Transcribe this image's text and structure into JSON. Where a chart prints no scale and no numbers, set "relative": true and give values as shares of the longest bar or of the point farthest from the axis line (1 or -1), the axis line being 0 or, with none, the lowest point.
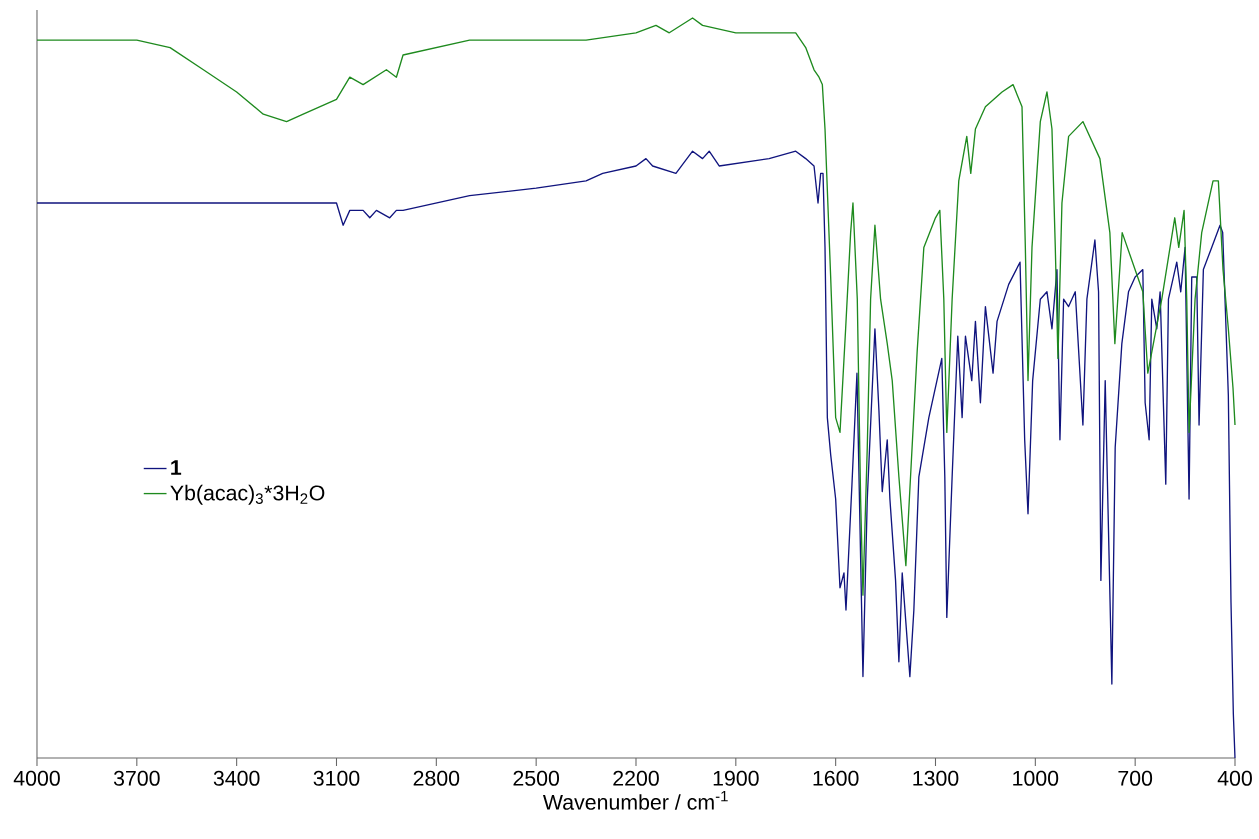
{
  "chart_data": {
    "type": "line",
    "relative": true,
    "xlabel": "Wavenumber / cm$^{-1}$",
    "xlim": [
      4000,
      400
    ],
    "xticks": [
      4000,
      3700,
      3400,
      3100,
      2800,
      2500,
      2200,
      1900,
      1600,
      1300,
      1000,
      700,
      400
    ],
    "legend": "left",
    "grid": false,
    "marker": "none",
    "series": [
      {
        "name": "**1**",
        "color": "#10147e",
        "x": [
          4000,
          3700,
          3400,
          3100,
          3080,
          3060,
          3020,
          3000,
          2980,
          2940,
          2920,
          2900,
          2700,
          2500,
          2350,
          2300,
          2200,
          2170,
          2150,
          2080,
          2030,
          2000,
          1980,
          1950,
          1800,
          1720,
          1690,
          1665,
          1653,
          1645,
          1638,
          1632,
          1625,
          1615,
          1600,
          1587,
          1575,
          1569,
          1551,
          1536,
          1525,
          1518,
          1505,
          1482,
          1470,
          1460,
          1445,
          1437,
          1420,
          1410,
          1400,
          1377,
          1365,
          1350,
          1320,
          1281,
          1272,
          1266,
          1250,
          1233,
          1220,
          1210,
          1191,
          1180,
          1165,
          1150,
          1127,
          1115,
          1080,
          1046,
          1032,
          1022,
          1008,
          985,
          965,
          950,
          935,
          926,
          915,
          900,
          880,
          857,
          845,
          821,
          810,
          803,
          790,
          770,
          760,
          740,
          720,
          700,
          677,
          670,
          658,
          650,
          635,
          625,
          608,
          600,
          575,
          563,
          550,
          538,
          530,
          515,
          508,
          495,
          470,
          445,
          437,
          430,
          420,
          412,
          405,
          400
        ],
        "values": [
          0.75,
          0.75,
          0.75,
          0.75,
          0.72,
          0.74,
          0.74,
          0.73,
          0.74,
          0.73,
          0.74,
          0.74,
          0.76,
          0.77,
          0.78,
          0.79,
          0.8,
          0.81,
          0.8,
          0.79,
          0.82,
          0.81,
          0.82,
          0.8,
          0.81,
          0.82,
          0.81,
          0.8,
          0.75,
          0.79,
          0.79,
          0.69,
          0.46,
          0.41,
          0.35,
          0.23,
          0.25,
          0.2,
          0.37,
          0.52,
          0.27,
          0.11,
          0.35,
          0.58,
          0.47,
          0.36,
          0.43,
          0.35,
          0.24,
          0.13,
          0.25,
          0.11,
          0.2,
          0.38,
          0.46,
          0.54,
          0.38,
          0.19,
          0.38,
          0.57,
          0.46,
          0.57,
          0.51,
          0.59,
          0.48,
          0.61,
          0.52,
          0.59,
          0.64,
          0.67,
          0.43,
          0.33,
          0.51,
          0.62,
          0.63,
          0.58,
          0.66,
          0.43,
          0.62,
          0.61,
          0.63,
          0.45,
          0.62,
          0.7,
          0.63,
          0.24,
          0.51,
          0.1,
          0.42,
          0.56,
          0.63,
          0.65,
          0.66,
          0.48,
          0.43,
          0.62,
          0.58,
          0.63,
          0.37,
          0.62,
          0.67,
          0.63,
          0.69,
          0.35,
          0.65,
          0.65,
          0.45,
          0.66,
          0.69,
          0.72,
          0.71,
          0.62,
          0.49,
          0.21,
          0.06,
          0.0
        ]
      },
      {
        "name": "Yb(acac)$_{3}$*3H$_{2}$O",
        "color": "#1e8a1e",
        "x": [
          4000,
          3700,
          3600,
          3500,
          3400,
          3320,
          3250,
          3200,
          3100,
          3060,
          3020,
          2950,
          2920,
          2900,
          2700,
          2500,
          2350,
          2200,
          2140,
          2100,
          2030,
          2000,
          1900,
          1800,
          1720,
          1690,
          1665,
          1650,
          1640,
          1632,
          1615,
          1600,
          1587,
          1570,
          1555,
          1548,
          1535,
          1525,
          1518,
          1505,
          1495,
          1482,
          1465,
          1445,
          1430,
          1410,
          1389,
          1375,
          1355,
          1335,
          1300,
          1287,
          1275,
          1266,
          1250,
          1230,
          1206,
          1194,
          1180,
          1150,
          1100,
          1067,
          1040,
          1030,
          1022,
          1010,
          985,
          965,
          950,
          940,
          932,
          920,
          900,
          857,
          806,
          776,
          761,
          739,
          677,
          662,
          620,
          581,
          569,
          553,
          545,
          538,
          520,
          500,
          466,
          450,
          436,
          420,
          406,
          400
        ],
        "values": [
          0.97,
          0.97,
          0.96,
          0.93,
          0.9,
          0.87,
          0.86,
          0.87,
          0.89,
          0.92,
          0.91,
          0.93,
          0.92,
          0.95,
          0.97,
          0.97,
          0.97,
          0.98,
          0.99,
          0.98,
          1.0,
          0.99,
          0.98,
          0.98,
          0.98,
          0.96,
          0.93,
          0.92,
          0.91,
          0.85,
          0.65,
          0.46,
          0.44,
          0.58,
          0.71,
          0.75,
          0.62,
          0.35,
          0.22,
          0.42,
          0.62,
          0.72,
          0.62,
          0.56,
          0.51,
          0.38,
          0.26,
          0.38,
          0.55,
          0.69,
          0.73,
          0.74,
          0.62,
          0.44,
          0.62,
          0.78,
          0.84,
          0.79,
          0.85,
          0.88,
          0.9,
          0.91,
          0.88,
          0.69,
          0.51,
          0.69,
          0.86,
          0.9,
          0.85,
          0.69,
          0.54,
          0.75,
          0.84,
          0.86,
          0.81,
          0.71,
          0.56,
          0.71,
          0.63,
          0.52,
          0.62,
          0.73,
          0.69,
          0.74,
          0.62,
          0.44,
          0.62,
          0.71,
          0.78,
          0.78,
          0.66,
          0.58,
          0.5,
          0.45
        ]
      }
    ]
  }
}
